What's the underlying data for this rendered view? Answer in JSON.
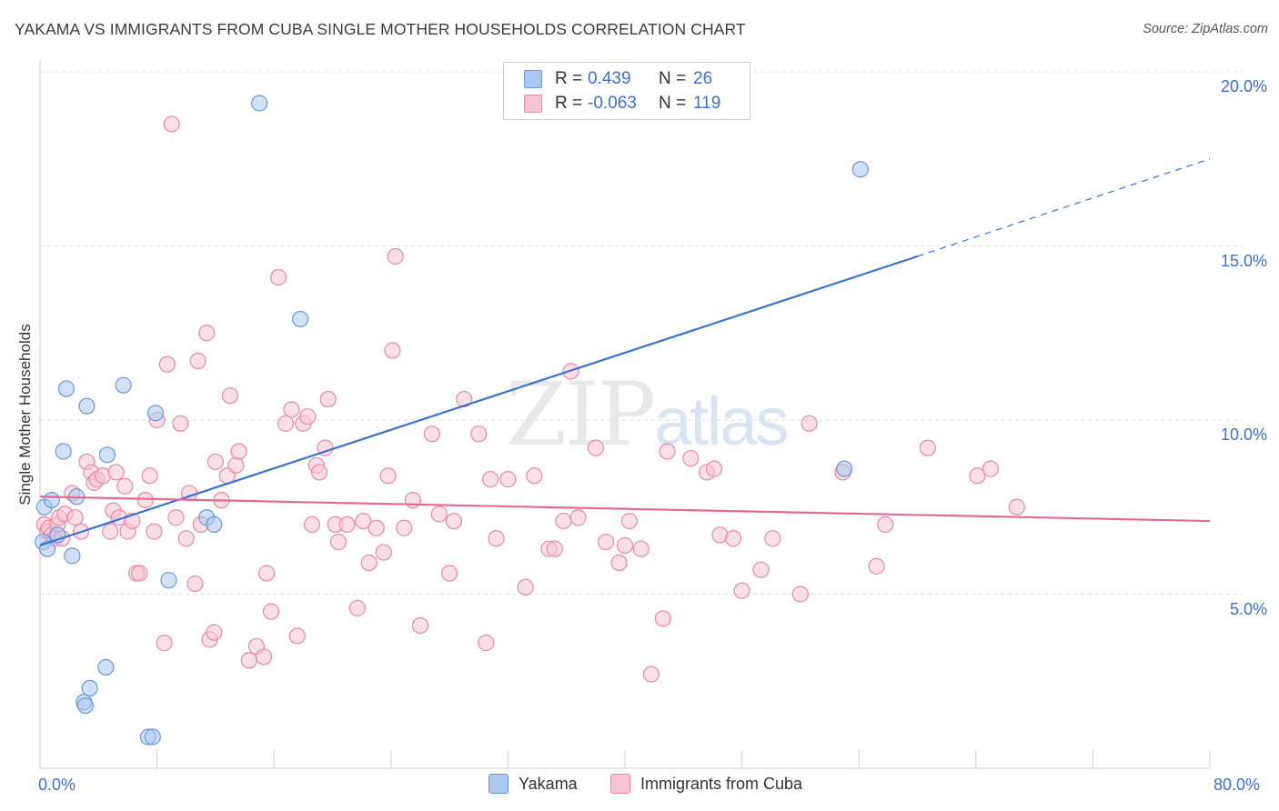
{
  "header": {
    "title": "YAKAMA VS IMMIGRANTS FROM CUBA SINGLE MOTHER HOUSEHOLDS CORRELATION CHART",
    "source": "Source: ZipAtlas.com"
  },
  "watermark": {
    "zip": "ZIP",
    "atlas": "atlas"
  },
  "legend_top": {
    "rows": [
      {
        "r_label": "R =",
        "r_value": "0.439",
        "n_label": "N =",
        "n_value": "26",
        "color": "#aac8f0",
        "border": "#6a9ad8"
      },
      {
        "r_label": "R =",
        "r_value": "-0.063",
        "n_label": "N =",
        "n_value": "119",
        "color": "#f8c4d4",
        "border": "#e88aa8"
      }
    ]
  },
  "chart_data": {
    "type": "scatter",
    "title": "YAKAMA VS IMMIGRANTS FROM CUBA SINGLE MOTHER HOUSEHOLDS CORRELATION CHART",
    "xlabel": "",
    "ylabel": "Single Mother Households",
    "xlim": [
      0,
      80
    ],
    "ylim": [
      0,
      20
    ],
    "x_tick_labels": [
      "0.0%",
      "80.0%"
    ],
    "y_ticks": [
      5,
      10,
      15,
      20
    ],
    "y_tick_labels": [
      "5.0%",
      "10.0%",
      "15.0%",
      "20.0%"
    ],
    "grid": "horizontal dashed",
    "legend_position": "bottom",
    "series": [
      {
        "name": "Yakama",
        "color": "#6a9ad8",
        "fill": "#aac8f0",
        "trend": {
          "x0": 0,
          "y0": 6.4,
          "x1": 60,
          "y1": 14.7,
          "extend_to_x": 80,
          "extend_y": 17.5,
          "color": "#3a72d0"
        },
        "points": [
          [
            0.2,
            6.5
          ],
          [
            0.3,
            7.5
          ],
          [
            0.5,
            6.3
          ],
          [
            0.8,
            7.7
          ],
          [
            1.2,
            6.7
          ],
          [
            1.6,
            9.1
          ],
          [
            1.8,
            10.9
          ],
          [
            2.2,
            6.1
          ],
          [
            2.5,
            7.8
          ],
          [
            3.0,
            1.9
          ],
          [
            3.1,
            1.8
          ],
          [
            3.2,
            10.4
          ],
          [
            3.4,
            2.3
          ],
          [
            4.5,
            2.9
          ],
          [
            4.6,
            9.0
          ],
          [
            5.7,
            11.0
          ],
          [
            7.4,
            0.9
          ],
          [
            7.7,
            0.9
          ],
          [
            7.9,
            10.2
          ],
          [
            8.8,
            5.4
          ],
          [
            11.4,
            7.2
          ],
          [
            11.9,
            7.0
          ],
          [
            15.0,
            19.1
          ],
          [
            17.8,
            12.9
          ],
          [
            56.1,
            17.2
          ],
          [
            55.0,
            8.6
          ]
        ]
      },
      {
        "name": "Immigrants from Cuba",
        "color": "#e88aa8",
        "fill": "#f8c4d4",
        "trend": {
          "x0": 0,
          "y0": 7.8,
          "x1": 80,
          "y1": 7.1,
          "color": "#e06b94"
        },
        "points": [
          [
            0.3,
            7.0
          ],
          [
            0.5,
            6.8
          ],
          [
            0.6,
            6.9
          ],
          [
            0.8,
            6.7
          ],
          [
            1.0,
            6.6
          ],
          [
            1.2,
            7.0
          ],
          [
            1.3,
            7.2
          ],
          [
            1.5,
            6.6
          ],
          [
            1.7,
            7.3
          ],
          [
            2.2,
            7.9
          ],
          [
            2.4,
            7.2
          ],
          [
            2.8,
            6.8
          ],
          [
            3.2,
            8.8
          ],
          [
            3.5,
            8.5
          ],
          [
            3.7,
            8.2
          ],
          [
            3.9,
            8.3
          ],
          [
            4.3,
            8.4
          ],
          [
            4.8,
            6.8
          ],
          [
            5.0,
            7.4
          ],
          [
            5.2,
            8.5
          ],
          [
            5.4,
            7.2
          ],
          [
            5.8,
            8.1
          ],
          [
            6.0,
            6.8
          ],
          [
            6.3,
            7.1
          ],
          [
            6.6,
            5.6
          ],
          [
            6.8,
            5.6
          ],
          [
            7.2,
            7.7
          ],
          [
            7.5,
            8.4
          ],
          [
            7.8,
            6.8
          ],
          [
            8.0,
            10.0
          ],
          [
            8.5,
            3.6
          ],
          [
            8.7,
            11.6
          ],
          [
            9.0,
            18.5
          ],
          [
            9.3,
            7.2
          ],
          [
            9.6,
            9.9
          ],
          [
            10.0,
            6.6
          ],
          [
            10.2,
            7.9
          ],
          [
            10.6,
            5.3
          ],
          [
            10.8,
            11.7
          ],
          [
            11.0,
            7.0
          ],
          [
            11.4,
            12.5
          ],
          [
            11.6,
            3.7
          ],
          [
            11.9,
            3.9
          ],
          [
            12.0,
            8.8
          ],
          [
            12.4,
            7.7
          ],
          [
            12.8,
            8.4
          ],
          [
            13.0,
            10.7
          ],
          [
            13.4,
            8.7
          ],
          [
            13.6,
            9.1
          ],
          [
            14.3,
            3.1
          ],
          [
            14.8,
            3.5
          ],
          [
            15.3,
            3.2
          ],
          [
            15.5,
            5.6
          ],
          [
            15.8,
            4.5
          ],
          [
            16.3,
            14.1
          ],
          [
            16.8,
            9.9
          ],
          [
            17.2,
            10.3
          ],
          [
            17.6,
            3.8
          ],
          [
            18.0,
            9.9
          ],
          [
            18.3,
            10.1
          ],
          [
            18.6,
            7.0
          ],
          [
            18.9,
            8.7
          ],
          [
            19.1,
            8.5
          ],
          [
            19.5,
            9.2
          ],
          [
            19.7,
            10.6
          ],
          [
            20.2,
            7.0
          ],
          [
            20.4,
            6.5
          ],
          [
            21.0,
            7.0
          ],
          [
            21.7,
            4.6
          ],
          [
            22.1,
            7.1
          ],
          [
            22.5,
            5.9
          ],
          [
            23.0,
            6.9
          ],
          [
            23.5,
            6.2
          ],
          [
            23.8,
            8.4
          ],
          [
            24.1,
            12.0
          ],
          [
            24.3,
            14.7
          ],
          [
            24.9,
            6.9
          ],
          [
            25.5,
            7.7
          ],
          [
            26.0,
            4.1
          ],
          [
            26.8,
            9.6
          ],
          [
            27.3,
            7.3
          ],
          [
            28.0,
            5.6
          ],
          [
            28.3,
            7.1
          ],
          [
            29.0,
            10.6
          ],
          [
            30.0,
            9.6
          ],
          [
            30.5,
            3.6
          ],
          [
            30.8,
            8.3
          ],
          [
            31.2,
            6.6
          ],
          [
            32.0,
            8.3
          ],
          [
            33.2,
            5.2
          ],
          [
            33.8,
            8.4
          ],
          [
            34.8,
            6.3
          ],
          [
            35.2,
            6.3
          ],
          [
            35.8,
            7.1
          ],
          [
            36.3,
            11.4
          ],
          [
            36.8,
            7.2
          ],
          [
            38.0,
            9.2
          ],
          [
            38.7,
            6.5
          ],
          [
            39.6,
            5.9
          ],
          [
            40.0,
            6.4
          ],
          [
            40.3,
            7.1
          ],
          [
            41.1,
            6.3
          ],
          [
            41.8,
            2.7
          ],
          [
            42.6,
            4.3
          ],
          [
            42.9,
            9.1
          ],
          [
            44.5,
            8.9
          ],
          [
            45.6,
            8.5
          ],
          [
            46.1,
            8.6
          ],
          [
            46.5,
            6.7
          ],
          [
            47.4,
            6.6
          ],
          [
            48.0,
            5.1
          ],
          [
            49.3,
            5.7
          ],
          [
            50.1,
            6.6
          ],
          [
            52.0,
            5.0
          ],
          [
            52.6,
            9.9
          ],
          [
            54.9,
            8.5
          ],
          [
            57.2,
            5.8
          ],
          [
            57.8,
            7.0
          ],
          [
            60.7,
            9.2
          ],
          [
            64.1,
            8.4
          ],
          [
            65.0,
            8.6
          ],
          [
            66.8,
            7.5
          ]
        ]
      }
    ]
  },
  "legend_bottom": {
    "items": [
      {
        "label": "Yakama",
        "color": "#aac8f0",
        "border": "#6a9ad8"
      },
      {
        "label": "Immigrants from Cuba",
        "color": "#f8c4d4",
        "border": "#e88aa8"
      }
    ]
  }
}
